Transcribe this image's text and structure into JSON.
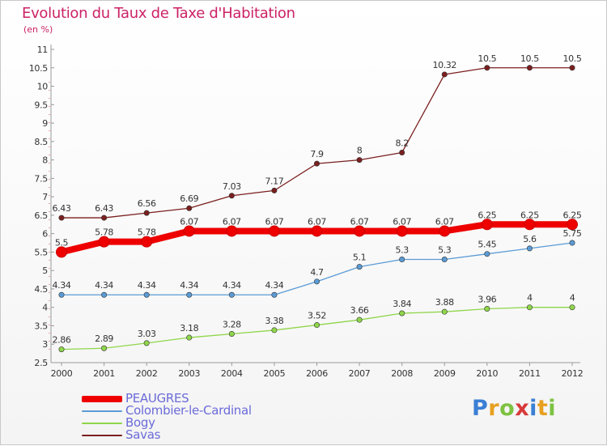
{
  "header": {
    "title": "Evolution du Taux de Taxe d'Habitation",
    "subtitle": "(en %)"
  },
  "logo": {
    "text": "Proxiti",
    "letters": [
      "P",
      "r",
      "o",
      "x",
      "i",
      "t",
      "i"
    ],
    "colors": [
      "#3a7fd5",
      "#e8a020",
      "#7dc242",
      "#d83a3a",
      "#3a7fd5",
      "#e8a020",
      "#7dc242"
    ]
  },
  "chart_data": {
    "type": "line",
    "title": "Evolution du Taux de Taxe d'Habitation",
    "subtitle": "(en %)",
    "xlabel": "",
    "ylabel": "",
    "x": [
      "2000",
      "2001",
      "2002",
      "2003",
      "2004",
      "2005",
      "2006",
      "2007",
      "2008",
      "2009",
      "2010",
      "2011",
      "2012"
    ],
    "ylim": [
      2.5,
      11
    ],
    "yticks": [
      "2.5",
      "3",
      "3.5",
      "4",
      "4.5",
      "5",
      "5.5",
      "6",
      "6.5",
      "7",
      "7.5",
      "8",
      "8.5",
      "9",
      "9.5",
      "10",
      "10.5",
      "11"
    ],
    "grid": false,
    "legend_position": "bottom-left",
    "series": [
      {
        "name": "Savas",
        "color": "#7b1f1f",
        "values": [
          6.43,
          6.43,
          6.56,
          6.69,
          7.03,
          7.17,
          7.9,
          8,
          8.2,
          10.32,
          10.5,
          10.5,
          10.5
        ],
        "labels": [
          "6.43",
          "6.43",
          "6.56",
          "6.69",
          "7.03",
          "7.17",
          "7.9",
          "8",
          "8.2",
          "10.32",
          "10.5",
          "10.5",
          "10.5"
        ]
      },
      {
        "name": "Bogy",
        "color": "#8fd64a",
        "values": [
          2.86,
          2.89,
          3.03,
          3.18,
          3.28,
          3.38,
          3.52,
          3.66,
          3.84,
          3.88,
          3.96,
          4,
          4
        ],
        "labels": [
          "2.86",
          "2.89",
          "3.03",
          "3.18",
          "3.28",
          "3.38",
          "3.52",
          "3.66",
          "3.84",
          "3.88",
          "3.96",
          "4",
          "4"
        ]
      },
      {
        "name": "Colombier-le-Cardinal",
        "color": "#5b9bd5",
        "values": [
          4.34,
          4.34,
          4.34,
          4.34,
          4.34,
          4.34,
          4.7,
          5.1,
          5.3,
          5.3,
          5.45,
          5.6,
          5.75
        ],
        "labels": [
          "4.34",
          "4.34",
          "4.34",
          "4.34",
          "4.34",
          "4.34",
          "4.7",
          "5.1",
          "5.3",
          "5.3",
          "5.45",
          "5.6",
          "5.75"
        ]
      },
      {
        "name": "PEAUGRES",
        "color": "#ee0000",
        "values": [
          5.5,
          5.78,
          5.78,
          6.07,
          6.07,
          6.07,
          6.07,
          6.07,
          6.07,
          6.07,
          6.25,
          6.25,
          6.25
        ],
        "labels": [
          "5.5",
          "5.78",
          "5.78",
          "6.07",
          "6.07",
          "6.07",
          "6.07",
          "6.07",
          "6.07",
          "6.07",
          "6.25",
          "6.25",
          "6.25"
        ]
      }
    ]
  },
  "legend": {
    "items": [
      {
        "label": "PEAUGRES",
        "color": "#ee0000"
      },
      {
        "label": "Colombier-le-Cardinal",
        "color": "#5b9bd5"
      },
      {
        "label": "Bogy",
        "color": "#8fd64a"
      },
      {
        "label": "Savas",
        "color": "#7b1f1f"
      }
    ]
  }
}
